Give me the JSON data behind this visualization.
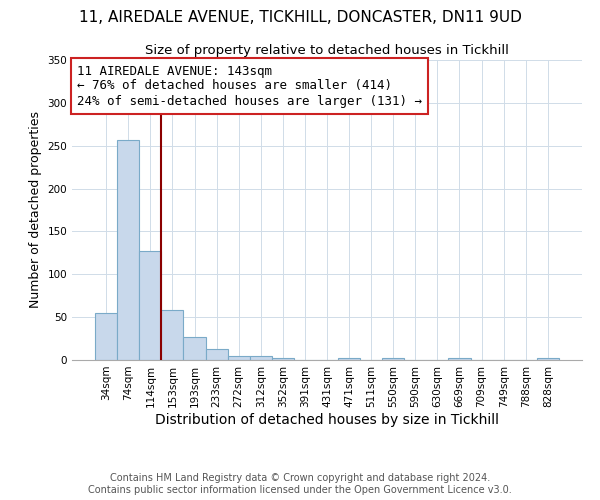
{
  "title": "11, AIREDALE AVENUE, TICKHILL, DONCASTER, DN11 9UD",
  "subtitle": "Size of property relative to detached houses in Tickhill",
  "xlabel": "Distribution of detached houses by size in Tickhill",
  "ylabel": "Number of detached properties",
  "bar_labels": [
    "34sqm",
    "74sqm",
    "114sqm",
    "153sqm",
    "193sqm",
    "233sqm",
    "272sqm",
    "312sqm",
    "352sqm",
    "391sqm",
    "431sqm",
    "471sqm",
    "511sqm",
    "550sqm",
    "590sqm",
    "630sqm",
    "669sqm",
    "709sqm",
    "749sqm",
    "788sqm",
    "828sqm"
  ],
  "bar_values": [
    55,
    257,
    127,
    58,
    27,
    13,
    5,
    5,
    2,
    0,
    0,
    2,
    0,
    2,
    0,
    0,
    2,
    0,
    0,
    0,
    2
  ],
  "bar_color": "#c8d8eb",
  "bar_edge_color": "#7aaac8",
  "annotation_title": "11 AIREDALE AVENUE: 143sqm",
  "annotation_line1": "← 76% of detached houses are smaller (414)",
  "annotation_line2": "24% of semi-detached houses are larger (131) →",
  "ylim": [
    0,
    350
  ],
  "yticks": [
    0,
    50,
    100,
    150,
    200,
    250,
    300,
    350
  ],
  "footer_line1": "Contains HM Land Registry data © Crown copyright and database right 2024.",
  "footer_line2": "Contains public sector information licensed under the Open Government Licence v3.0.",
  "title_fontsize": 11,
  "subtitle_fontsize": 9.5,
  "xlabel_fontsize": 10,
  "ylabel_fontsize": 9,
  "annotation_fontsize": 9,
  "tick_fontsize": 7.5,
  "footer_fontsize": 7,
  "line_color": "#8b0000",
  "background_color": "#ffffff",
  "grid_color": "#d0dce8"
}
